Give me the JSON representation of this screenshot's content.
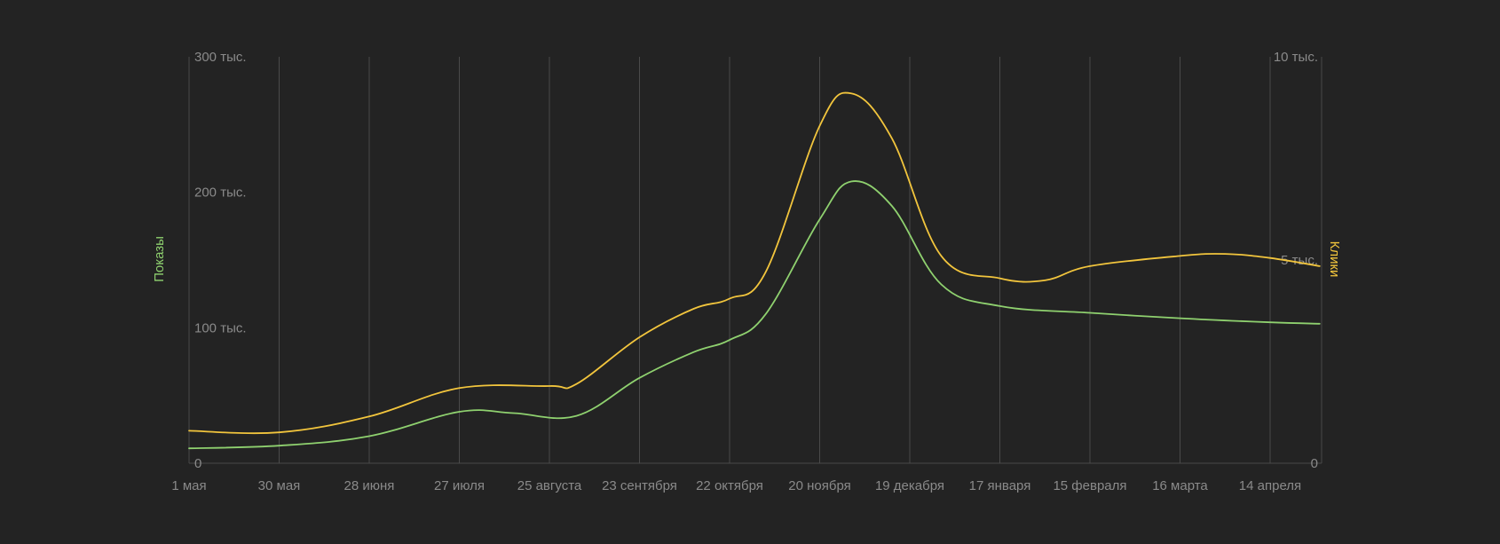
{
  "chart_data": {
    "type": "line",
    "title": "",
    "x": [
      "1 мая",
      "30 мая",
      "28 июня",
      "27 июля",
      "25 августа",
      "23 сентября",
      "22 октября",
      "20 ноября",
      "19 декабря",
      "17 января",
      "15 февраля",
      "16 марта",
      "14 апреля"
    ],
    "x_extra_point": true,
    "left_axis": {
      "label": "Показы",
      "color": "#8fd16f",
      "ylim": [
        0,
        300000
      ],
      "ticks": [
        0,
        100000,
        200000,
        300000
      ],
      "tick_labels": [
        "0",
        "100 тыс.",
        "200 тыс.",
        "300 тыс."
      ]
    },
    "right_axis": {
      "label": "Клики",
      "color": "#f2c53d",
      "ylim": [
        0,
        10000
      ],
      "ticks": [
        0,
        5000,
        10000
      ],
      "tick_labels": [
        "0",
        "5 тыс.",
        "10 тыс."
      ]
    },
    "grid": true,
    "series": [
      {
        "name": "Показы",
        "axis": "left",
        "color": "#8fd16f",
        "points": [
          [
            0,
            11000
          ],
          [
            1,
            13000
          ],
          [
            2,
            20000
          ],
          [
            3,
            38000
          ],
          [
            3.6,
            37000
          ],
          [
            4.3,
            35000
          ],
          [
            5,
            63000
          ],
          [
            5.6,
            82000
          ],
          [
            6,
            91000
          ],
          [
            6.4,
            110000
          ],
          [
            7,
            180000
          ],
          [
            7.35,
            208000
          ],
          [
            7.8,
            190000
          ],
          [
            8.35,
            132000
          ],
          [
            9,
            116000
          ],
          [
            10,
            111000
          ],
          [
            11,
            107000
          ],
          [
            12,
            104000
          ],
          [
            12.55,
            103000
          ]
        ]
      },
      {
        "name": "Клики",
        "axis": "right",
        "color": "#f2c53d",
        "points": [
          [
            0,
            800
          ],
          [
            1,
            760
          ],
          [
            2,
            1150
          ],
          [
            3,
            1850
          ],
          [
            4,
            1900
          ],
          [
            4.3,
            1950
          ],
          [
            5,
            3100
          ],
          [
            5.6,
            3800
          ],
          [
            6,
            4050
          ],
          [
            6.4,
            4700
          ],
          [
            7,
            8300
          ],
          [
            7.35,
            9100
          ],
          [
            7.8,
            8000
          ],
          [
            8.35,
            5100
          ],
          [
            9,
            4550
          ],
          [
            9.5,
            4500
          ],
          [
            10,
            4850
          ],
          [
            11,
            5100
          ],
          [
            11.5,
            5150
          ],
          [
            12,
            5050
          ],
          [
            12.55,
            4850
          ]
        ]
      }
    ]
  }
}
